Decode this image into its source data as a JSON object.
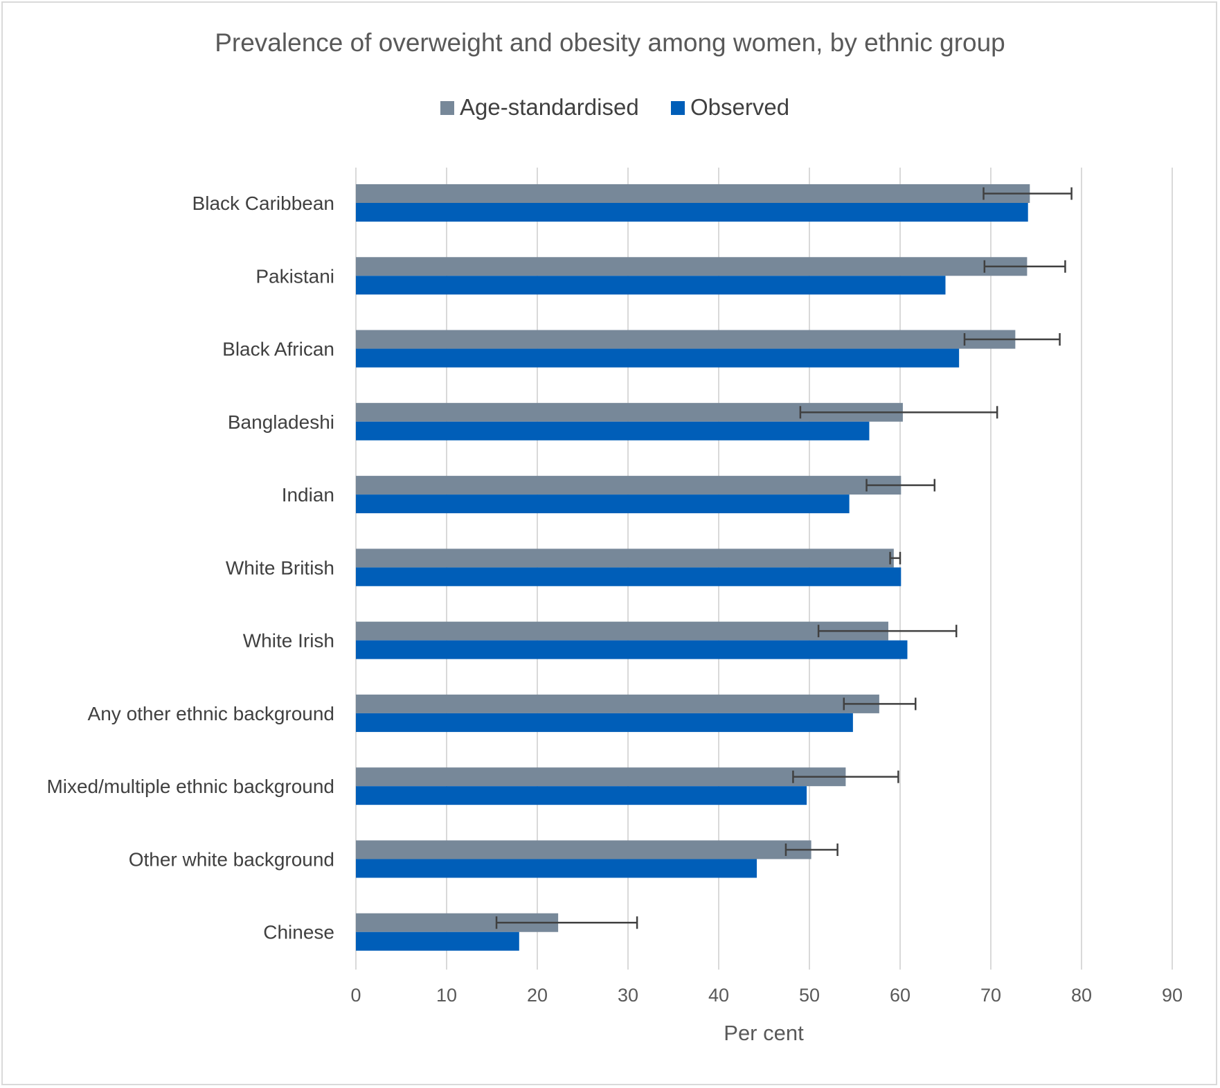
{
  "chart_data": {
    "type": "bar",
    "orientation": "horizontal",
    "title": "Prevalence of overweight and obesity among women, by ethnic group",
    "xlabel": "Per cent",
    "ylabel": "",
    "xlim": [
      0,
      90
    ],
    "x_ticks": [
      0,
      10,
      20,
      30,
      40,
      50,
      60,
      70,
      80,
      90
    ],
    "grid": true,
    "legend_position": "top",
    "categories": [
      "Black Caribbean",
      "Pakistani",
      "Black African",
      "Bangladeshi",
      "Indian",
      "White British",
      "White Irish",
      "Any other ethnic background",
      "Mixed/multiple ethnic background",
      "Other white background",
      "Chinese"
    ],
    "series": [
      {
        "name": "Age-standardised",
        "color": "#778899",
        "values": [
          74.3,
          74.0,
          72.7,
          60.3,
          60.1,
          59.3,
          58.7,
          57.7,
          54.0,
          50.2,
          22.3
        ],
        "error_low": [
          69.2,
          69.3,
          67.1,
          49.0,
          56.3,
          58.9,
          51.0,
          53.8,
          48.2,
          47.4,
          15.5
        ],
        "error_high": [
          78.9,
          78.2,
          77.6,
          70.7,
          63.8,
          60.0,
          66.2,
          61.7,
          59.8,
          53.1,
          31.0
        ]
      },
      {
        "name": "Observed",
        "color": "#005EB8",
        "values": [
          74.1,
          65.0,
          66.5,
          56.6,
          54.4,
          60.1,
          60.8,
          54.8,
          49.7,
          44.2,
          18.0
        ]
      }
    ]
  }
}
